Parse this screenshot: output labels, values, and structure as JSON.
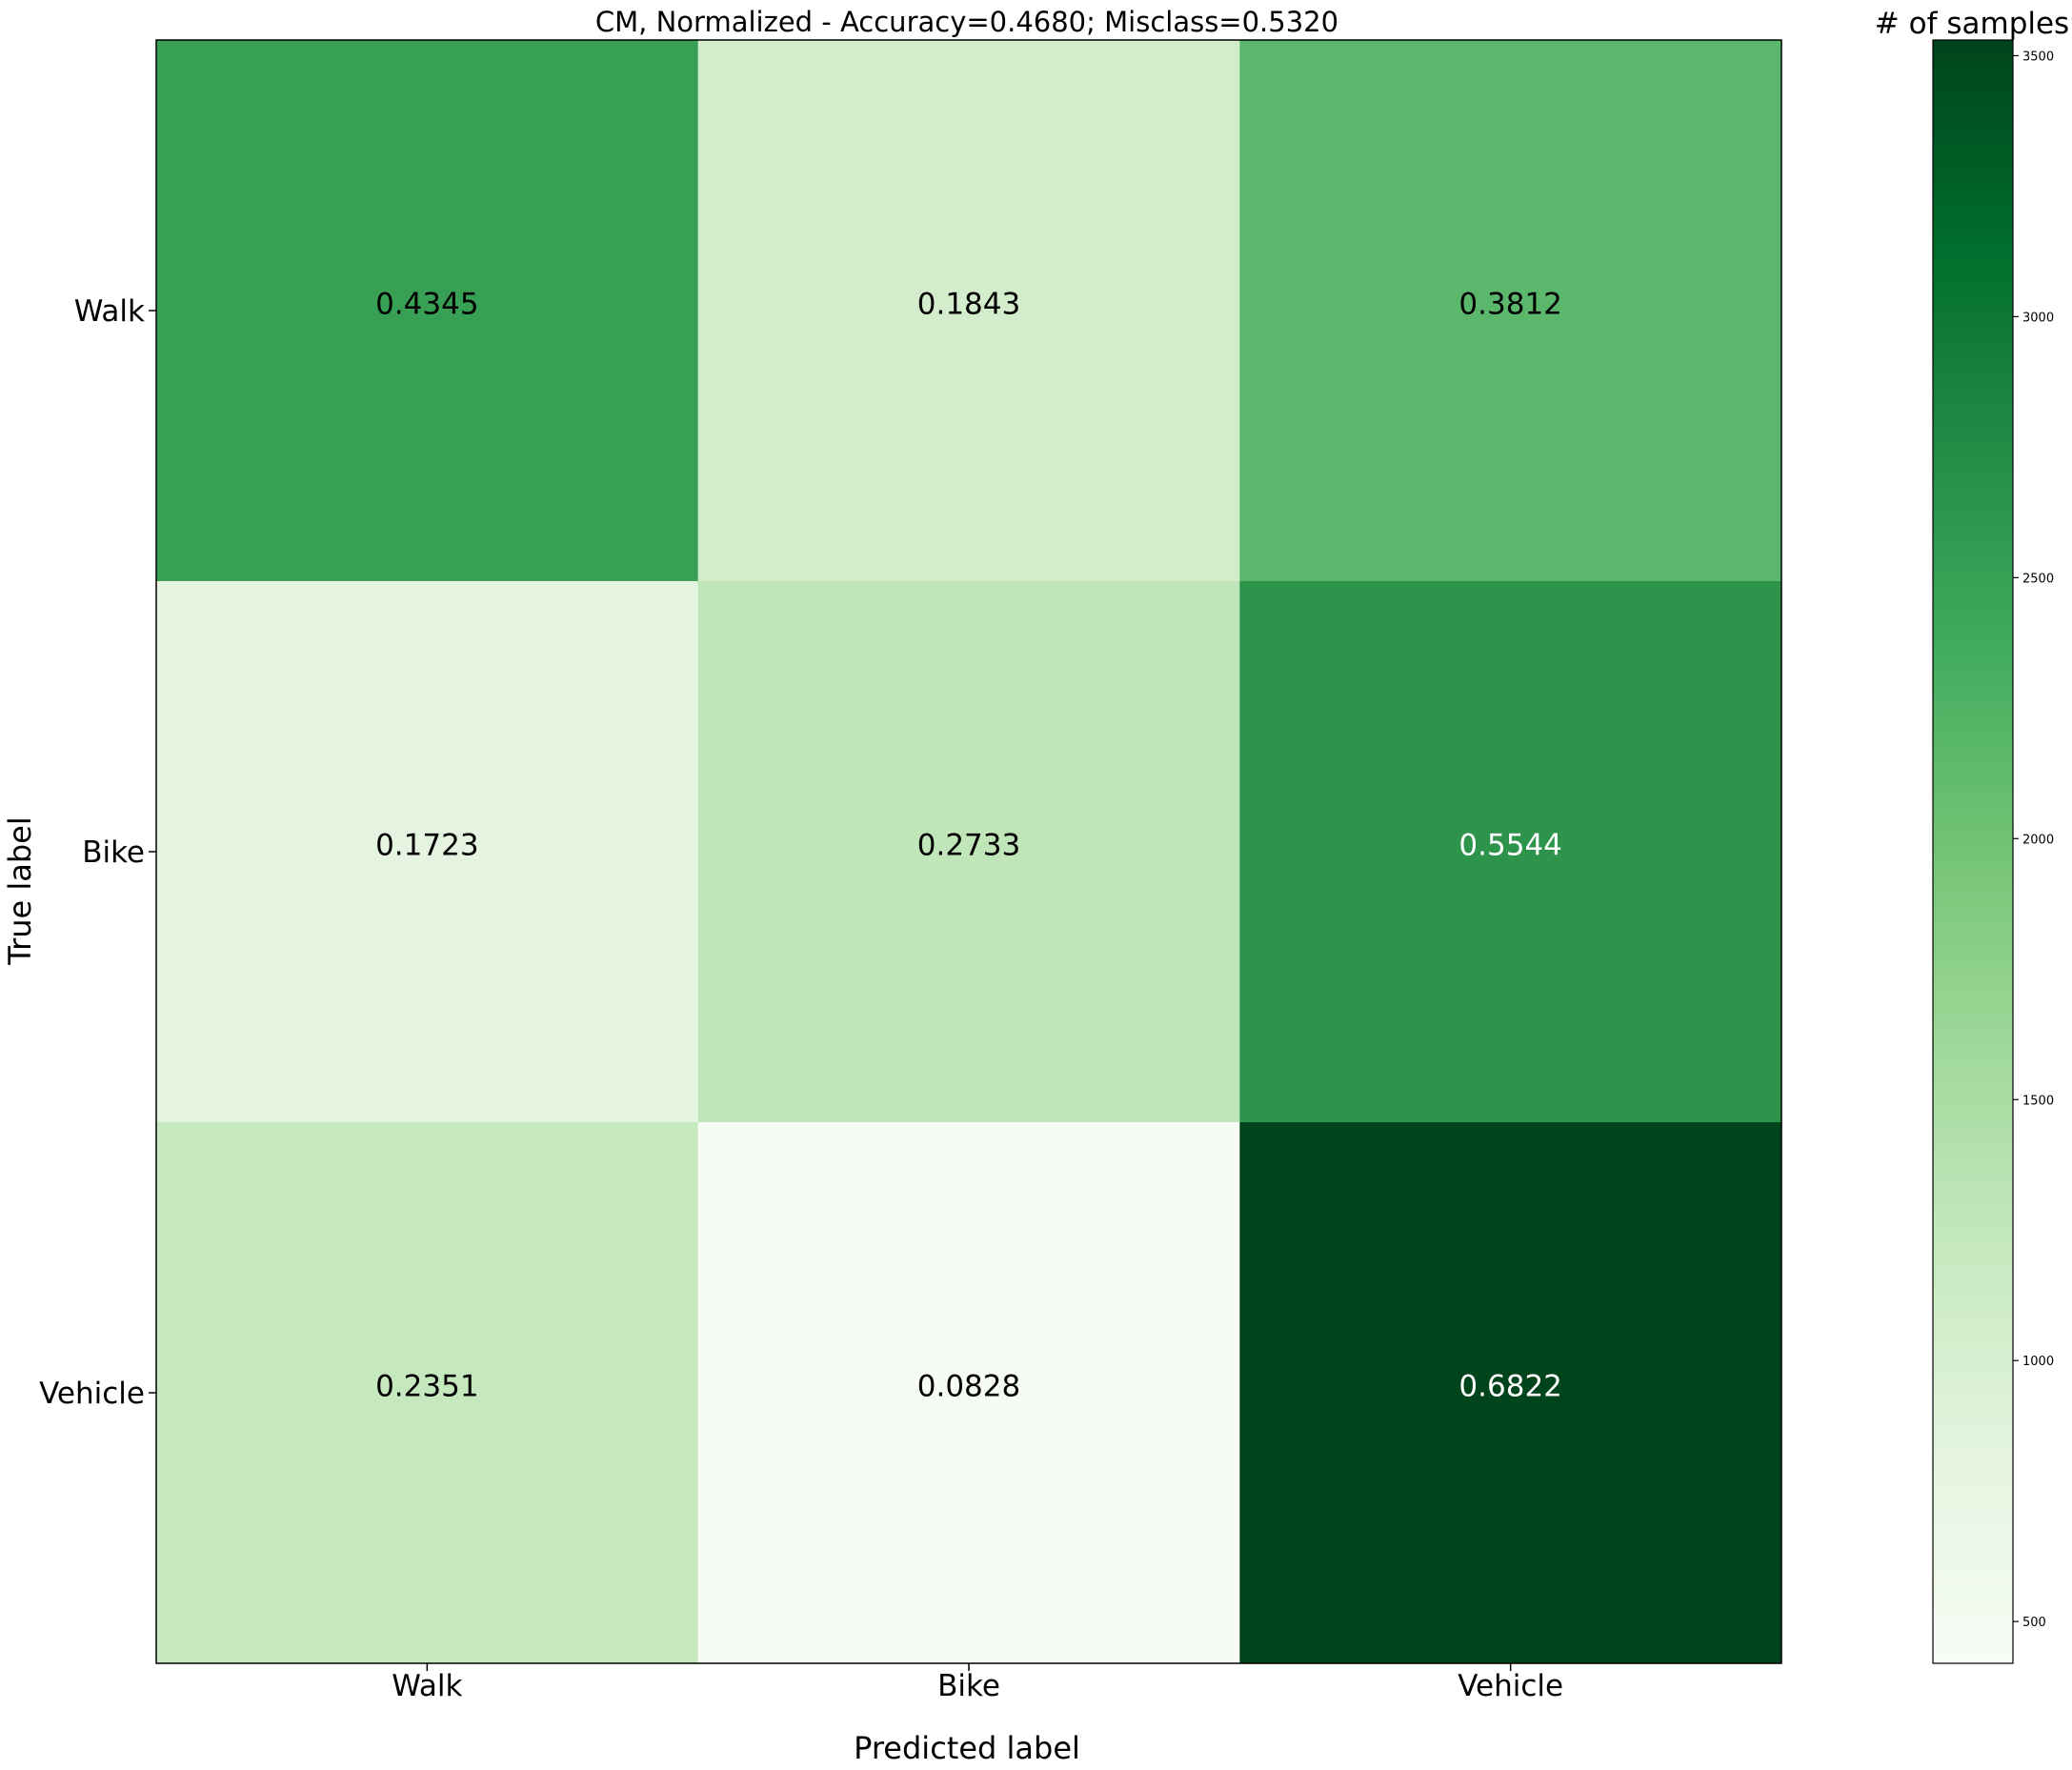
{
  "chart_data": {
    "type": "heatmap",
    "title": "CM, Normalized - Accuracy=0.4680; Misclass=0.5320",
    "xlabel": "Predicted label",
    "ylabel": "True label",
    "x_categories": [
      "Walk",
      "Bike",
      "Vehicle"
    ],
    "y_categories": [
      "Walk",
      "Bike",
      "Vehicle"
    ],
    "values": [
      [
        0.4345,
        0.1843,
        0.3812
      ],
      [
        0.1723,
        0.2733,
        0.5544
      ],
      [
        0.2351,
        0.0828,
        0.6822
      ]
    ],
    "colors": [
      [
        "#38a055",
        "#d3edcc",
        "#5bb76c"
      ],
      [
        "#e5f4e0",
        "#c0e5b8",
        "#2e944c"
      ],
      [
        "#c6e8bf",
        "#f6fbf4",
        "#00441b"
      ]
    ],
    "colorbar": {
      "title": "# of samples",
      "range": [
        420,
        3530
      ],
      "ticks": [
        500,
        1000,
        1500,
        2000,
        2500,
        3000,
        3500
      ],
      "colormap": [
        "#f7fcf5",
        "#e5f5e0",
        "#c7e9c0",
        "#a1d99b",
        "#74c476",
        "#41ab5d",
        "#238b45",
        "#006d2c",
        "#00441b"
      ]
    },
    "grid": false
  }
}
